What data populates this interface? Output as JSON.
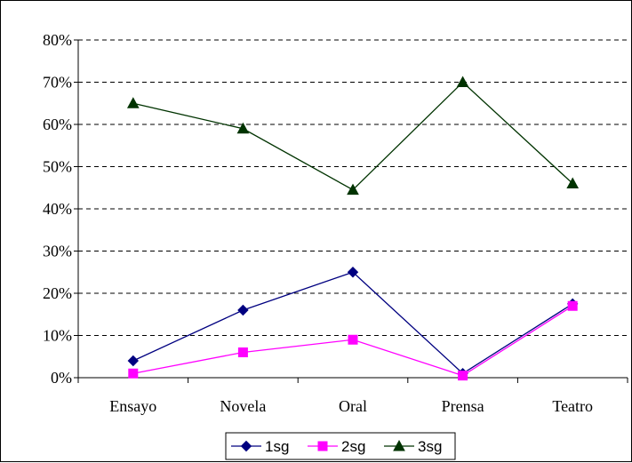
{
  "chart_data": {
    "type": "line",
    "categories": [
      "Ensayo",
      "Novela",
      "Oral",
      "Prensa",
      "Teatro"
    ],
    "y_tick_labels": [
      "0%",
      "10%",
      "20%",
      "30%",
      "40%",
      "50%",
      "60%",
      "70%",
      "80%"
    ],
    "ylim": [
      0,
      80
    ],
    "y_unit": "%",
    "grid": "horizontal dashed",
    "legend_position": "bottom",
    "series": [
      {
        "name": "1sg",
        "values": [
          4,
          16,
          25,
          1,
          17.5
        ],
        "color": "#000080",
        "marker": "diamond"
      },
      {
        "name": "2sg",
        "values": [
          1,
          6,
          9,
          0.5,
          17
        ],
        "color": "#FF00FF",
        "marker": "square"
      },
      {
        "name": "3sg",
        "values": [
          65,
          59,
          44.5,
          70,
          46
        ],
        "color": "#003300",
        "marker": "triangle"
      }
    ]
  }
}
